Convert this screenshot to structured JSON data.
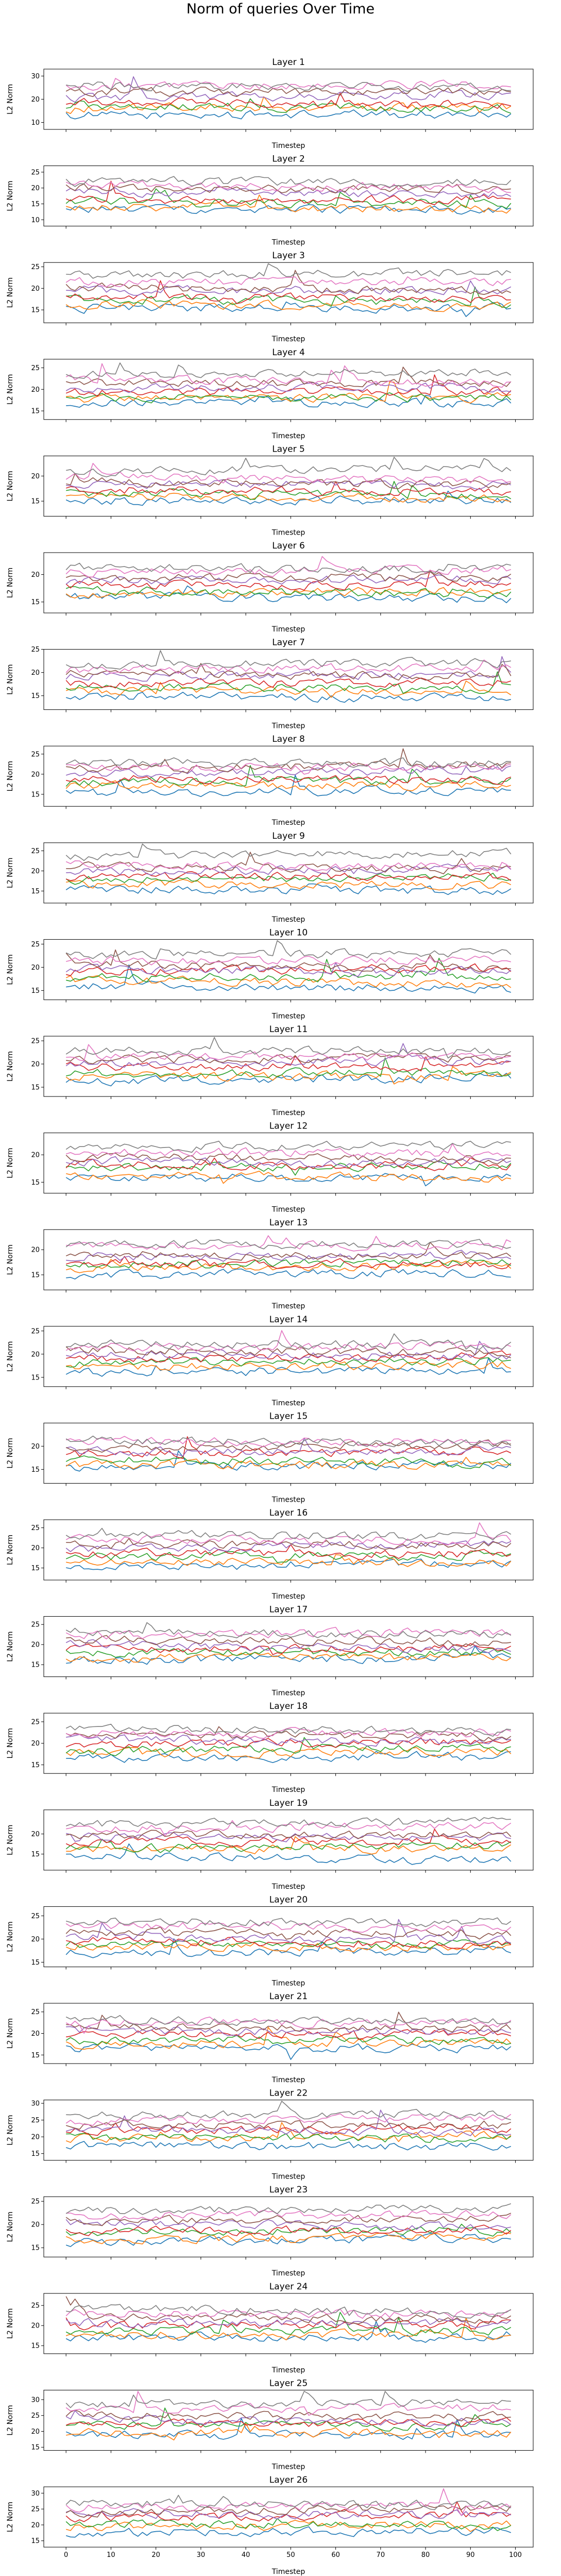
{
  "title": "Norm of queries Over Time",
  "colors": [
    "#1f77b4",
    "#ff7f0e",
    "#2ca02c",
    "#d62728",
    "#9467bd",
    "#8c564b",
    "#e377c2",
    "#7f7f7f"
  ],
  "chart_data": {
    "type": "line",
    "x_range": [
      0,
      99
    ],
    "xticks": [
      0,
      10,
      20,
      30,
      40,
      50,
      60,
      70,
      80,
      90,
      100
    ],
    "series_per_panel": 8,
    "panels": [
      {
        "title": "Layer 1",
        "xlabel": "Timestep",
        "ylabel": "L2 Norm",
        "ylim": [
          7,
          33
        ],
        "yticks": [
          10,
          20,
          30
        ]
      },
      {
        "title": "Layer 2",
        "xlabel": "Timestep",
        "ylabel": "L2 Norm",
        "ylim": [
          8,
          27
        ],
        "yticks": [
          10,
          15,
          20,
          25
        ]
      },
      {
        "title": "Layer 3",
        "xlabel": "Timestep",
        "ylabel": "L2 Norm",
        "ylim": [
          12,
          26
        ],
        "yticks": [
          15,
          20,
          25
        ]
      },
      {
        "title": "Layer 4",
        "xlabel": "Timestep",
        "ylabel": "L2 Norm",
        "ylim": [
          13,
          27
        ],
        "yticks": [
          15,
          20,
          25
        ]
      },
      {
        "title": "Layer 5",
        "xlabel": "Timestep",
        "ylabel": "L2 Norm",
        "ylim": [
          12,
          24
        ],
        "yticks": [
          15,
          20
        ]
      },
      {
        "title": "Layer 6",
        "xlabel": "Timestep",
        "ylabel": "L2 Norm",
        "ylim": [
          13,
          24
        ],
        "yticks": [
          15,
          20
        ]
      },
      {
        "title": "Layer 7",
        "xlabel": "Timestep",
        "ylabel": "L2 Norm",
        "ylim": [
          12,
          25
        ],
        "yticks": [
          15,
          20,
          25
        ]
      },
      {
        "title": "Layer 8",
        "xlabel": "Timestep",
        "ylabel": "L2 Norm",
        "ylim": [
          12,
          27
        ],
        "yticks": [
          15,
          20,
          25
        ]
      },
      {
        "title": "Layer 9",
        "xlabel": "Timestep",
        "ylabel": "L2 Norm",
        "ylim": [
          12,
          27
        ],
        "yticks": [
          15,
          20,
          25
        ]
      },
      {
        "title": "Layer 10",
        "xlabel": "Timestep",
        "ylabel": "L2 Norm",
        "ylim": [
          13,
          26
        ],
        "yticks": [
          15,
          20,
          25
        ]
      },
      {
        "title": "Layer 11",
        "xlabel": "Timestep",
        "ylabel": "L2 Norm",
        "ylim": [
          13,
          26
        ],
        "yticks": [
          15,
          20,
          25
        ]
      },
      {
        "title": "Layer 12",
        "xlabel": "Timestep",
        "ylabel": "L2 Norm",
        "ylim": [
          13,
          24
        ],
        "yticks": [
          15,
          20
        ]
      },
      {
        "title": "Layer 13",
        "xlabel": "Timestep",
        "ylabel": "L2 Norm",
        "ylim": [
          12,
          24
        ],
        "yticks": [
          15,
          20
        ]
      },
      {
        "title": "Layer 14",
        "xlabel": "Timestep",
        "ylabel": "L2 Norm",
        "ylim": [
          13,
          26
        ],
        "yticks": [
          15,
          20,
          25
        ]
      },
      {
        "title": "Layer 15",
        "xlabel": "Timestep",
        "ylabel": "L2 Norm",
        "ylim": [
          12,
          25
        ],
        "yticks": [
          15,
          20
        ]
      },
      {
        "title": "Layer 16",
        "xlabel": "Timestep",
        "ylabel": "L2 Norm",
        "ylim": [
          12,
          27
        ],
        "yticks": [
          15,
          20,
          25
        ]
      },
      {
        "title": "Layer 17",
        "xlabel": "Timestep",
        "ylabel": "L2 Norm",
        "ylim": [
          12,
          27
        ],
        "yticks": [
          15,
          20,
          25
        ]
      },
      {
        "title": "Layer 18",
        "xlabel": "Timestep",
        "ylabel": "L2 Norm",
        "ylim": [
          13,
          27
        ],
        "yticks": [
          15,
          20,
          25
        ]
      },
      {
        "title": "Layer 19",
        "xlabel": "Timestep",
        "ylabel": "L2 Norm",
        "ylim": [
          11,
          26
        ],
        "yticks": [
          15,
          20
        ]
      },
      {
        "title": "Layer 20",
        "xlabel": "Timestep",
        "ylabel": "L2 Norm",
        "ylim": [
          14,
          27
        ],
        "yticks": [
          15,
          20,
          25
        ]
      },
      {
        "title": "Layer 21",
        "xlabel": "Timestep",
        "ylabel": "L2 Norm",
        "ylim": [
          13,
          27
        ],
        "yticks": [
          15,
          20,
          25
        ]
      },
      {
        "title": "Layer 22",
        "xlabel": "Timestep",
        "ylabel": "L2 Norm",
        "ylim": [
          13,
          31
        ],
        "yticks": [
          15,
          20,
          25,
          30
        ]
      },
      {
        "title": "Layer 23",
        "xlabel": "Timestep",
        "ylabel": "L2 Norm",
        "ylim": [
          13,
          26
        ],
        "yticks": [
          15,
          20,
          25
        ]
      },
      {
        "title": "Layer 24",
        "xlabel": "Timestep",
        "ylabel": "L2 Norm",
        "ylim": [
          13,
          28
        ],
        "yticks": [
          15,
          20,
          25
        ]
      },
      {
        "title": "Layer 25",
        "xlabel": "Timestep",
        "ylabel": "L2 Norm",
        "ylim": [
          14,
          33
        ],
        "yticks": [
          15,
          20,
          25,
          30
        ]
      },
      {
        "title": "Layer 26",
        "xlabel": "Timestep",
        "ylabel": "L2 Norm",
        "ylim": [
          13,
          32
        ],
        "yticks": [
          15,
          20,
          25,
          30
        ]
      }
    ]
  }
}
